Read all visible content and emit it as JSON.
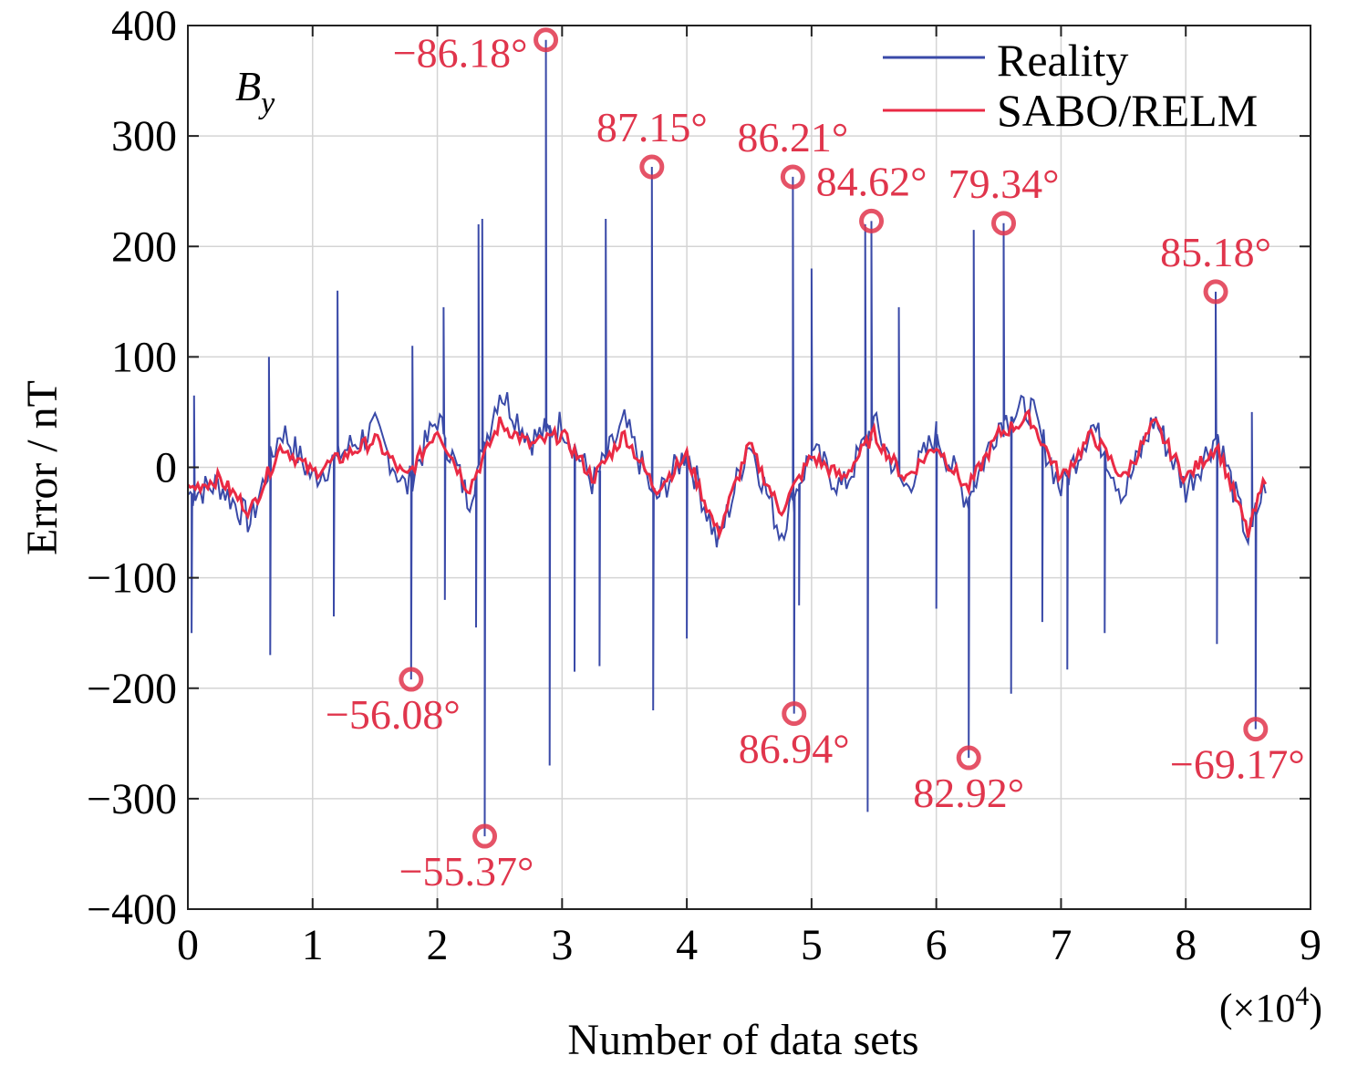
{
  "chart_data": {
    "type": "line",
    "title": "",
    "panel_label": "B",
    "panel_label_sub": "y",
    "xlabel": "Number of data sets",
    "x_multiplier": "(×10",
    "x_multiplier_exp": "4",
    "x_multiplier_close": ")",
    "ylabel": "Error / nT",
    "xlim": [
      0,
      9
    ],
    "ylim": [
      -400,
      400
    ],
    "xticks": [
      0,
      1,
      2,
      3,
      4,
      5,
      6,
      7,
      8,
      9
    ],
    "xtick_labels": [
      "0",
      "1",
      "2",
      "3",
      "4",
      "5",
      "6",
      "7",
      "8",
      "9"
    ],
    "yticks": [
      -400,
      -300,
      -200,
      -100,
      0,
      100,
      200,
      300,
      400
    ],
    "ytick_labels": [
      "−400",
      "−300",
      "−200",
      "−100",
      "0",
      "100",
      "200",
      "300",
      "400"
    ],
    "grid": true,
    "legend_placement": "top-right",
    "colors": {
      "reality": "#3a4aa8",
      "sabo": "#ea2a44",
      "annotation": "#e0354c"
    },
    "series": [
      {
        "name": "Reality",
        "baseline_x": [
          0,
          0.25,
          0.5,
          0.75,
          1,
          1.25,
          1.5,
          1.75,
          2,
          2.25,
          2.5,
          2.75,
          3,
          3.25,
          3.5,
          3.75,
          4,
          4.25,
          4.5,
          4.75,
          5,
          5.25,
          5.5,
          5.75,
          6,
          6.25,
          6.5,
          6.75,
          7,
          7.25,
          7.5,
          7.75,
          8,
          8.25,
          8.5,
          8.65
        ],
        "baseline_y": [
          -25,
          -15,
          -50,
          35,
          -10,
          15,
          35,
          -20,
          45,
          -30,
          70,
          25,
          40,
          -15,
          40,
          -30,
          15,
          -70,
          25,
          -60,
          15,
          -20,
          40,
          -20,
          30,
          -30,
          40,
          55,
          -20,
          40,
          -25,
          45,
          -20,
          30,
          -65,
          -10
        ],
        "spikes": [
          [
            0.03,
            -150
          ],
          [
            0.05,
            65
          ],
          [
            0.65,
            100
          ],
          [
            0.66,
            -170
          ],
          [
            1.17,
            -135
          ],
          [
            1.2,
            160
          ],
          [
            1.79,
            -192
          ],
          [
            1.8,
            110
          ],
          [
            2.05,
            145
          ],
          [
            2.06,
            -120
          ],
          [
            2.31,
            -145
          ],
          [
            2.33,
            220
          ],
          [
            2.36,
            225
          ],
          [
            2.38,
            -334
          ],
          [
            2.87,
            387
          ],
          [
            2.9,
            -270
          ],
          [
            3.1,
            -185
          ],
          [
            3.3,
            -180
          ],
          [
            3.35,
            225
          ],
          [
            3.72,
            272
          ],
          [
            3.73,
            -220
          ],
          [
            4.0,
            -155
          ],
          [
            4.85,
            263
          ],
          [
            4.86,
            -223
          ],
          [
            4.9,
            -125
          ],
          [
            5.0,
            180
          ],
          [
            5.43,
            220
          ],
          [
            5.45,
            -312
          ],
          [
            5.48,
            223
          ],
          [
            5.7,
            145
          ],
          [
            6.0,
            -128
          ],
          [
            6.26,
            -263
          ],
          [
            6.3,
            215
          ],
          [
            6.54,
            221
          ],
          [
            6.6,
            -205
          ],
          [
            6.85,
            -140
          ],
          [
            7.05,
            -183
          ],
          [
            7.35,
            -150
          ],
          [
            8.24,
            159
          ],
          [
            8.25,
            -160
          ],
          [
            8.53,
            50
          ],
          [
            8.56,
            -237
          ]
        ]
      },
      {
        "name": "SABO/RELM",
        "x": [
          0,
          0.25,
          0.5,
          0.75,
          1,
          1.25,
          1.5,
          1.75,
          2,
          2.25,
          2.5,
          2.75,
          3,
          3.25,
          3.5,
          3.75,
          4,
          4.25,
          4.5,
          4.75,
          5,
          5.25,
          5.5,
          5.75,
          6,
          6.25,
          6.5,
          6.75,
          7,
          7.25,
          7.5,
          7.75,
          8,
          8.25,
          8.5,
          8.65
        ],
        "y": [
          -20,
          -10,
          -40,
          20,
          -5,
          10,
          25,
          -10,
          35,
          -20,
          40,
          20,
          30,
          -10,
          30,
          -20,
          10,
          -60,
          20,
          -40,
          10,
          -10,
          30,
          -10,
          20,
          -20,
          30,
          45,
          -10,
          30,
          -10,
          40,
          -10,
          20,
          -60,
          -5
        ]
      }
    ],
    "annotations": [
      {
        "text": "−86.18°",
        "x": 2.87,
        "y": 387,
        "placement": "left"
      },
      {
        "text": "87.15°",
        "x": 3.72,
        "y": 272,
        "placement": "above"
      },
      {
        "text": "86.21°",
        "x": 4.85,
        "y": 263,
        "placement": "above"
      },
      {
        "text": "84.62°",
        "x": 5.48,
        "y": 223,
        "placement": "above"
      },
      {
        "text": "79.34°",
        "x": 6.54,
        "y": 221,
        "placement": "above"
      },
      {
        "text": "85.18°",
        "x": 8.24,
        "y": 159,
        "placement": "above"
      },
      {
        "text": "−56.08°",
        "x": 1.79,
        "y": -192,
        "placement": "below"
      },
      {
        "text": "−55.37°",
        "x": 2.38,
        "y": -334,
        "placement": "below"
      },
      {
        "text": "86.94°",
        "x": 4.86,
        "y": -223,
        "placement": "below"
      },
      {
        "text": "82.92°",
        "x": 6.26,
        "y": -263,
        "placement": "below"
      },
      {
        "text": "−69.17°",
        "x": 8.56,
        "y": -237,
        "placement": "below"
      }
    ]
  }
}
